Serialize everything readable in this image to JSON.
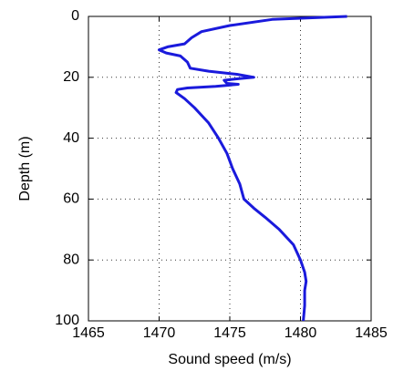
{
  "chart_data": {
    "type": "line",
    "x_label": "Sound speed (m/s)",
    "y_label": "Depth (m)",
    "color": "#1a1adc",
    "x": [
      1483.3,
      1478,
      1475,
      1473,
      1472.3,
      1471.8,
      1470.6,
      1470.0,
      1470.5,
      1471.5,
      1472.0,
      1472.2,
      1473.5,
      1475.5,
      1476.7,
      1475.5,
      1474.6,
      1474.8,
      1475.6,
      1474.0,
      1472.0,
      1471.3,
      1471.2,
      1471.8,
      1472.5,
      1473.5,
      1474.2,
      1474.8,
      1475.2,
      1475.7,
      1476.0,
      1476.7,
      1477.5,
      1478.5,
      1479.5,
      1480.0,
      1480.3,
      1480.4,
      1480.3,
      1480.3,
      1480.2
    ],
    "values": [
      0,
      1,
      3,
      5,
      7,
      9,
      10,
      11,
      12,
      13,
      15,
      17,
      18,
      19,
      20,
      20.5,
      21,
      22,
      22.3,
      23,
      23.5,
      24,
      25,
      27,
      30,
      35,
      40,
      45,
      50,
      55,
      60,
      63,
      66,
      70,
      75,
      80,
      84,
      87,
      90,
      95,
      100
    ],
    "xlim": [
      1465,
      1485
    ],
    "xticks": [
      1465,
      1470,
      1475,
      1480,
      1485
    ],
    "ylim": [
      0,
      100
    ],
    "yticks": [
      0,
      20,
      40,
      60,
      80,
      100
    ],
    "y_inverted": true,
    "grid": true
  }
}
